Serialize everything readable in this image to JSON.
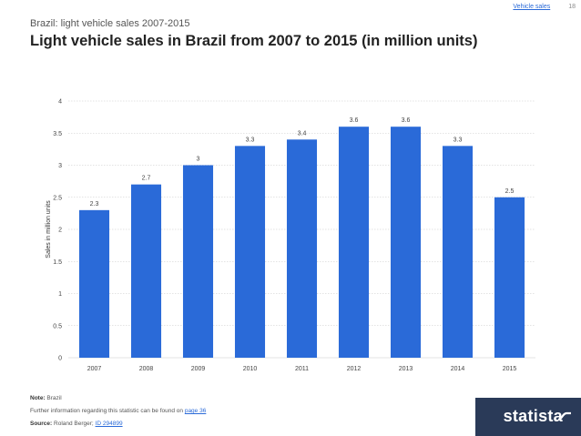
{
  "topnav": {
    "section": "Vehicle sales",
    "page_number": "18"
  },
  "header": {
    "subtitle": "Brazil: light vehicle sales 2007-2015",
    "title": "Light vehicle sales in Brazil from 2007 to 2015 (in million units)"
  },
  "chart_data": {
    "type": "bar",
    "categories": [
      "2007",
      "2008",
      "2009",
      "2010",
      "2011",
      "2012",
      "2013",
      "2014",
      "2015"
    ],
    "values": [
      2.3,
      2.7,
      3,
      3.3,
      3.4,
      3.6,
      3.6,
      3.3,
      2.5
    ],
    "ylabel": "Sales in million units",
    "ylim": [
      0,
      4
    ],
    "yticks": [
      0,
      0.5,
      1,
      1.5,
      2,
      2.5,
      3,
      3.5,
      4
    ],
    "grid": true,
    "bar_color": "#2a6ad8"
  },
  "footer": {
    "note_label": "Note:",
    "note_text": "Brazil",
    "further_info_text": "Further information regarding this statistic can be found on",
    "further_info_link": "page 36",
    "source_label": "Source:",
    "source_text": "Roland Berger;",
    "source_link": "ID 294899"
  },
  "brand": {
    "name": "statista",
    "color": "#2a3a58"
  }
}
